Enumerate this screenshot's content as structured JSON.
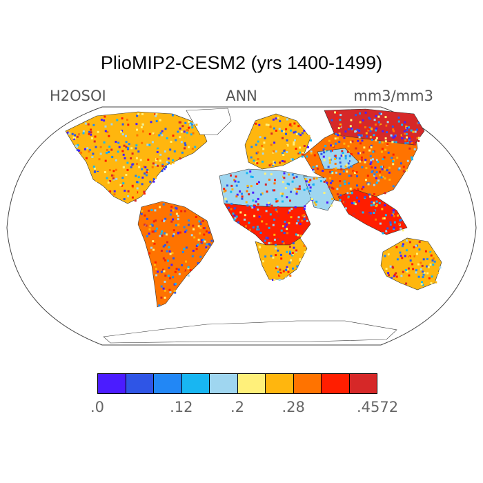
{
  "title": "PlioMIP2-CESM2 (yrs 1400-1499)",
  "subtitle": {
    "left": "H2OSOI",
    "center": "ANN",
    "right": "mm3/mm3"
  },
  "colorbar": {
    "colors": [
      "#4b1cff",
      "#2f55e6",
      "#2287f5",
      "#18b6f2",
      "#9fd6f0",
      "#fff07a",
      "#ffb60e",
      "#ff7300",
      "#ff1e00",
      "#d62828"
    ],
    "labels": [
      ".0",
      ".12",
      ".2",
      ".28",
      ".4572"
    ],
    "label_box_index": [
      0,
      3,
      5,
      7,
      10
    ]
  },
  "regions": [
    {
      "name": "north-america",
      "fill": "#ffb60e"
    },
    {
      "name": "greenland",
      "fill": "#ffffff"
    },
    {
      "name": "south-america",
      "fill": "#ff7300"
    },
    {
      "name": "europe",
      "fill": "#ffb60e"
    },
    {
      "name": "sahara",
      "fill": "#9fd6f0"
    },
    {
      "name": "arabia",
      "fill": "#9fd6f0"
    },
    {
      "name": "central-africa",
      "fill": "#ff1e00"
    },
    {
      "name": "southern-africa",
      "fill": "#ffb60e"
    },
    {
      "name": "asia",
      "fill": "#ff7300"
    },
    {
      "name": "siberia",
      "fill": "#d62828"
    },
    {
      "name": "central-asia",
      "fill": "#9fd6f0"
    },
    {
      "name": "southeast-asia",
      "fill": "#ff1e00"
    },
    {
      "name": "australia",
      "fill": "#ffb60e"
    },
    {
      "name": "antarctica",
      "fill": "#ffffff"
    }
  ]
}
